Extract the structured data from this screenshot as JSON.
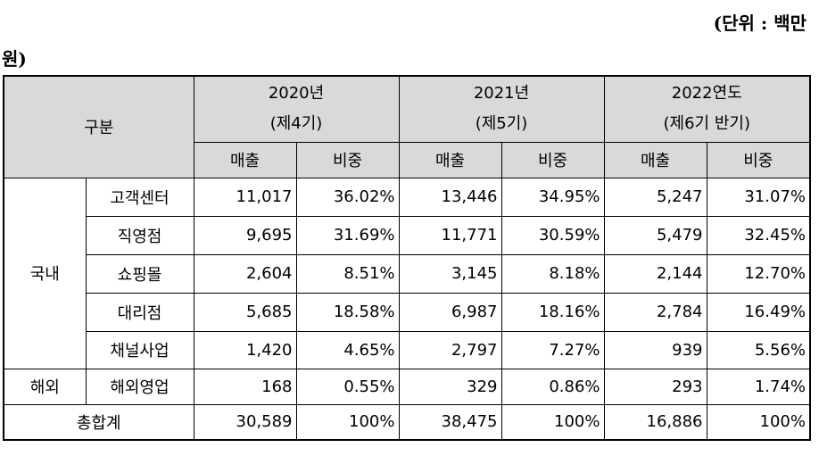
{
  "unit": {
    "part1": "(단위 : 백만",
    "part2": "원)"
  },
  "header": {
    "category": "구분",
    "years": [
      {
        "year": "2020년",
        "period": "(제4기)"
      },
      {
        "year": "2021년",
        "period": "(제5기)"
      },
      {
        "year": "2022연도",
        "period": "(제6기 반기)"
      }
    ],
    "sales": "매출",
    "share": "비중"
  },
  "groups": {
    "domestic": "국내",
    "overseas": "해외"
  },
  "rows": [
    {
      "name": "고객센터",
      "values": [
        "11,017",
        "36.02%",
        "13,446",
        "34.95%",
        "5,247",
        "31.07%"
      ]
    },
    {
      "name": "직영점",
      "values": [
        "9,695",
        "31.69%",
        "11,771",
        "30.59%",
        "5,479",
        "32.45%"
      ]
    },
    {
      "name": "쇼핑몰",
      "values": [
        "2,604",
        "8.51%",
        "3,145",
        "8.18%",
        "2,144",
        "12.70%"
      ]
    },
    {
      "name": "대리점",
      "values": [
        "5,685",
        "18.58%",
        "6,987",
        "18.16%",
        "2,784",
        "16.49%"
      ]
    },
    {
      "name": "채널사업",
      "values": [
        "1,420",
        "4.65%",
        "2,797",
        "7.27%",
        "939",
        "5.56%"
      ]
    },
    {
      "name": "해외영업",
      "values": [
        "168",
        "0.55%",
        "329",
        "0.86%",
        "293",
        "1.74%"
      ]
    }
  ],
  "total": {
    "name": "총합계",
    "values": [
      "30,589",
      "100%",
      "38,475",
      "100%",
      "16,886",
      "100%"
    ]
  }
}
